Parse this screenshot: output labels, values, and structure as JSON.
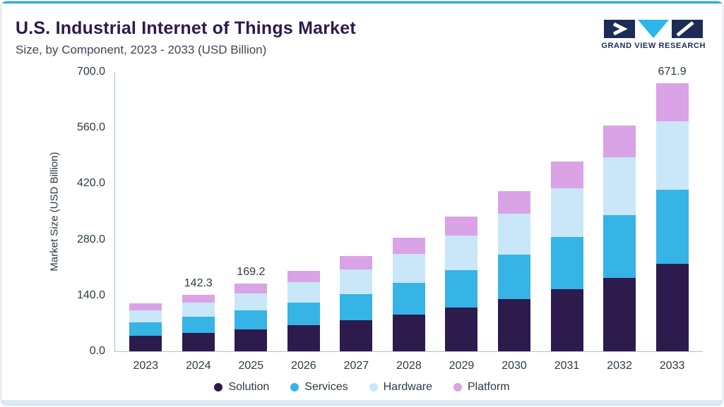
{
  "header": {
    "title": "U.S. Industrial Internet of Things Market",
    "subtitle": "Size, by Component, 2023 - 2033 (USD Billion)"
  },
  "logo": {
    "text": "GRAND VIEW RESEARCH",
    "navy": "#1b2c57",
    "cyan": "#2bb7ea"
  },
  "chart_data": {
    "type": "bar",
    "stacked": true,
    "title": "U.S. Industrial Internet of Things Market Size, by Component, 2023 - 2033 (USD Billion)",
    "xlabel": "",
    "ylabel": "Market Size (USD Billion)",
    "ylim": [
      0,
      700
    ],
    "yticks": [
      0.0,
      140.0,
      280.0,
      420.0,
      560.0,
      700.0
    ],
    "grid": false,
    "legend_position": "bottom",
    "categories": [
      "2023",
      "2024",
      "2025",
      "2026",
      "2027",
      "2028",
      "2029",
      "2030",
      "2031",
      "2032",
      "2033"
    ],
    "series": [
      {
        "name": "Solution",
        "color": "#2d1b4e",
        "values": [
          39.0,
          46.4,
          55.2,
          65.5,
          77.9,
          92.6,
          110.0,
          130.7,
          155.3,
          184.5,
          219.0
        ]
      },
      {
        "name": "Services",
        "color": "#35b4e5",
        "values": [
          33.2,
          39.4,
          46.9,
          55.7,
          66.2,
          78.6,
          93.4,
          111.0,
          131.9,
          156.8,
          186.1
        ]
      },
      {
        "name": "Hardware",
        "color": "#c9e7f8",
        "values": [
          30.5,
          36.3,
          43.1,
          51.3,
          60.9,
          72.4,
          86.0,
          102.2,
          121.5,
          144.3,
          171.3
        ]
      },
      {
        "name": "Platform",
        "color": "#d9a3e6",
        "values": [
          17.0,
          20.2,
          24.0,
          28.5,
          33.9,
          40.3,
          47.9,
          56.9,
          67.6,
          80.4,
          95.5
        ]
      }
    ],
    "total_labels": {
      "2024": "142.3",
      "2025": "169.2",
      "2033": "671.9"
    }
  }
}
